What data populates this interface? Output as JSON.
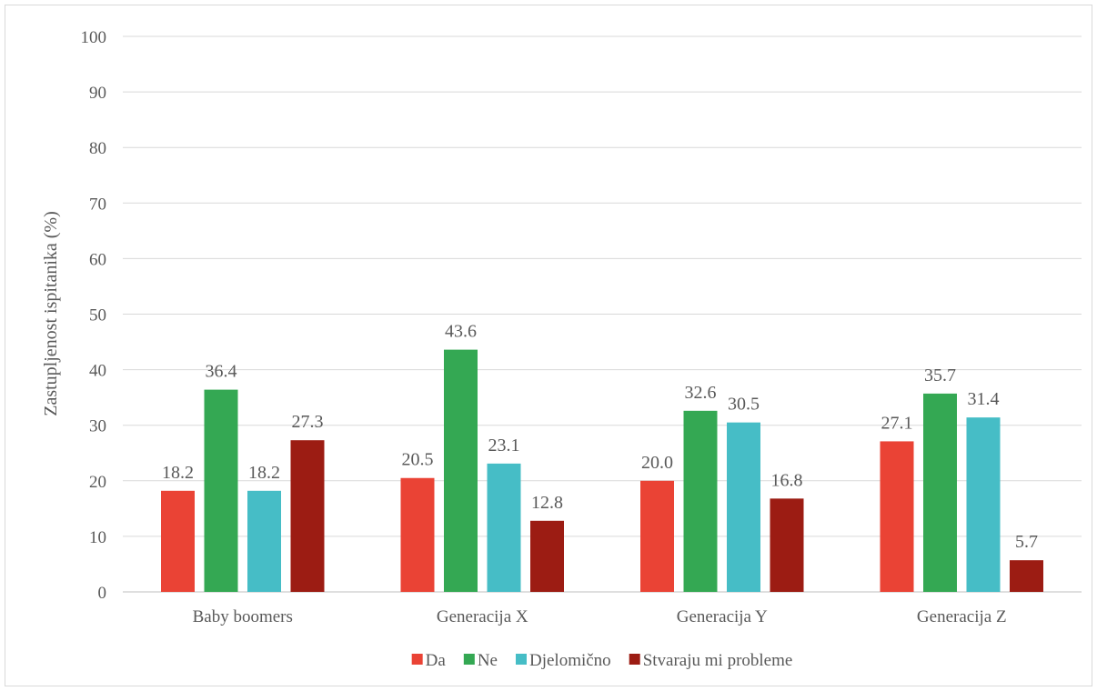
{
  "chart_data": {
    "type": "bar",
    "title": "",
    "xlabel": "",
    "ylabel": "Zastupljenost ispitanika (%)",
    "ylim": [
      0,
      100
    ],
    "yticks": [
      0,
      10,
      20,
      30,
      40,
      50,
      60,
      70,
      80,
      90,
      100
    ],
    "grid": true,
    "legend_position": "bottom",
    "categories": [
      "Baby boomers",
      "Generacija X",
      "Generacija Y",
      "Generacija Z"
    ],
    "series": [
      {
        "name": "Da",
        "color": "#ea4335",
        "values": [
          18.2,
          20.5,
          20.0,
          27.1
        ],
        "labels": [
          "18.2",
          "20.5",
          "20.0",
          "27.1"
        ]
      },
      {
        "name": "Ne",
        "color": "#34a853",
        "values": [
          36.4,
          43.6,
          32.6,
          35.7
        ],
        "labels": [
          "36.4",
          "43.6",
          "32.6",
          "35.7"
        ]
      },
      {
        "name": "Djelomično",
        "color": "#46bdc6",
        "values": [
          18.2,
          23.1,
          30.5,
          31.4
        ],
        "labels": [
          "18.2",
          "23.1",
          "30.5",
          "31.4"
        ]
      },
      {
        "name": "Stvaraju mi probleme",
        "color": "#9c1c13",
        "values": [
          27.3,
          12.8,
          16.8,
          5.7
        ],
        "labels": [
          "27.3",
          "12.8",
          "16.8",
          "5.7"
        ]
      }
    ]
  }
}
